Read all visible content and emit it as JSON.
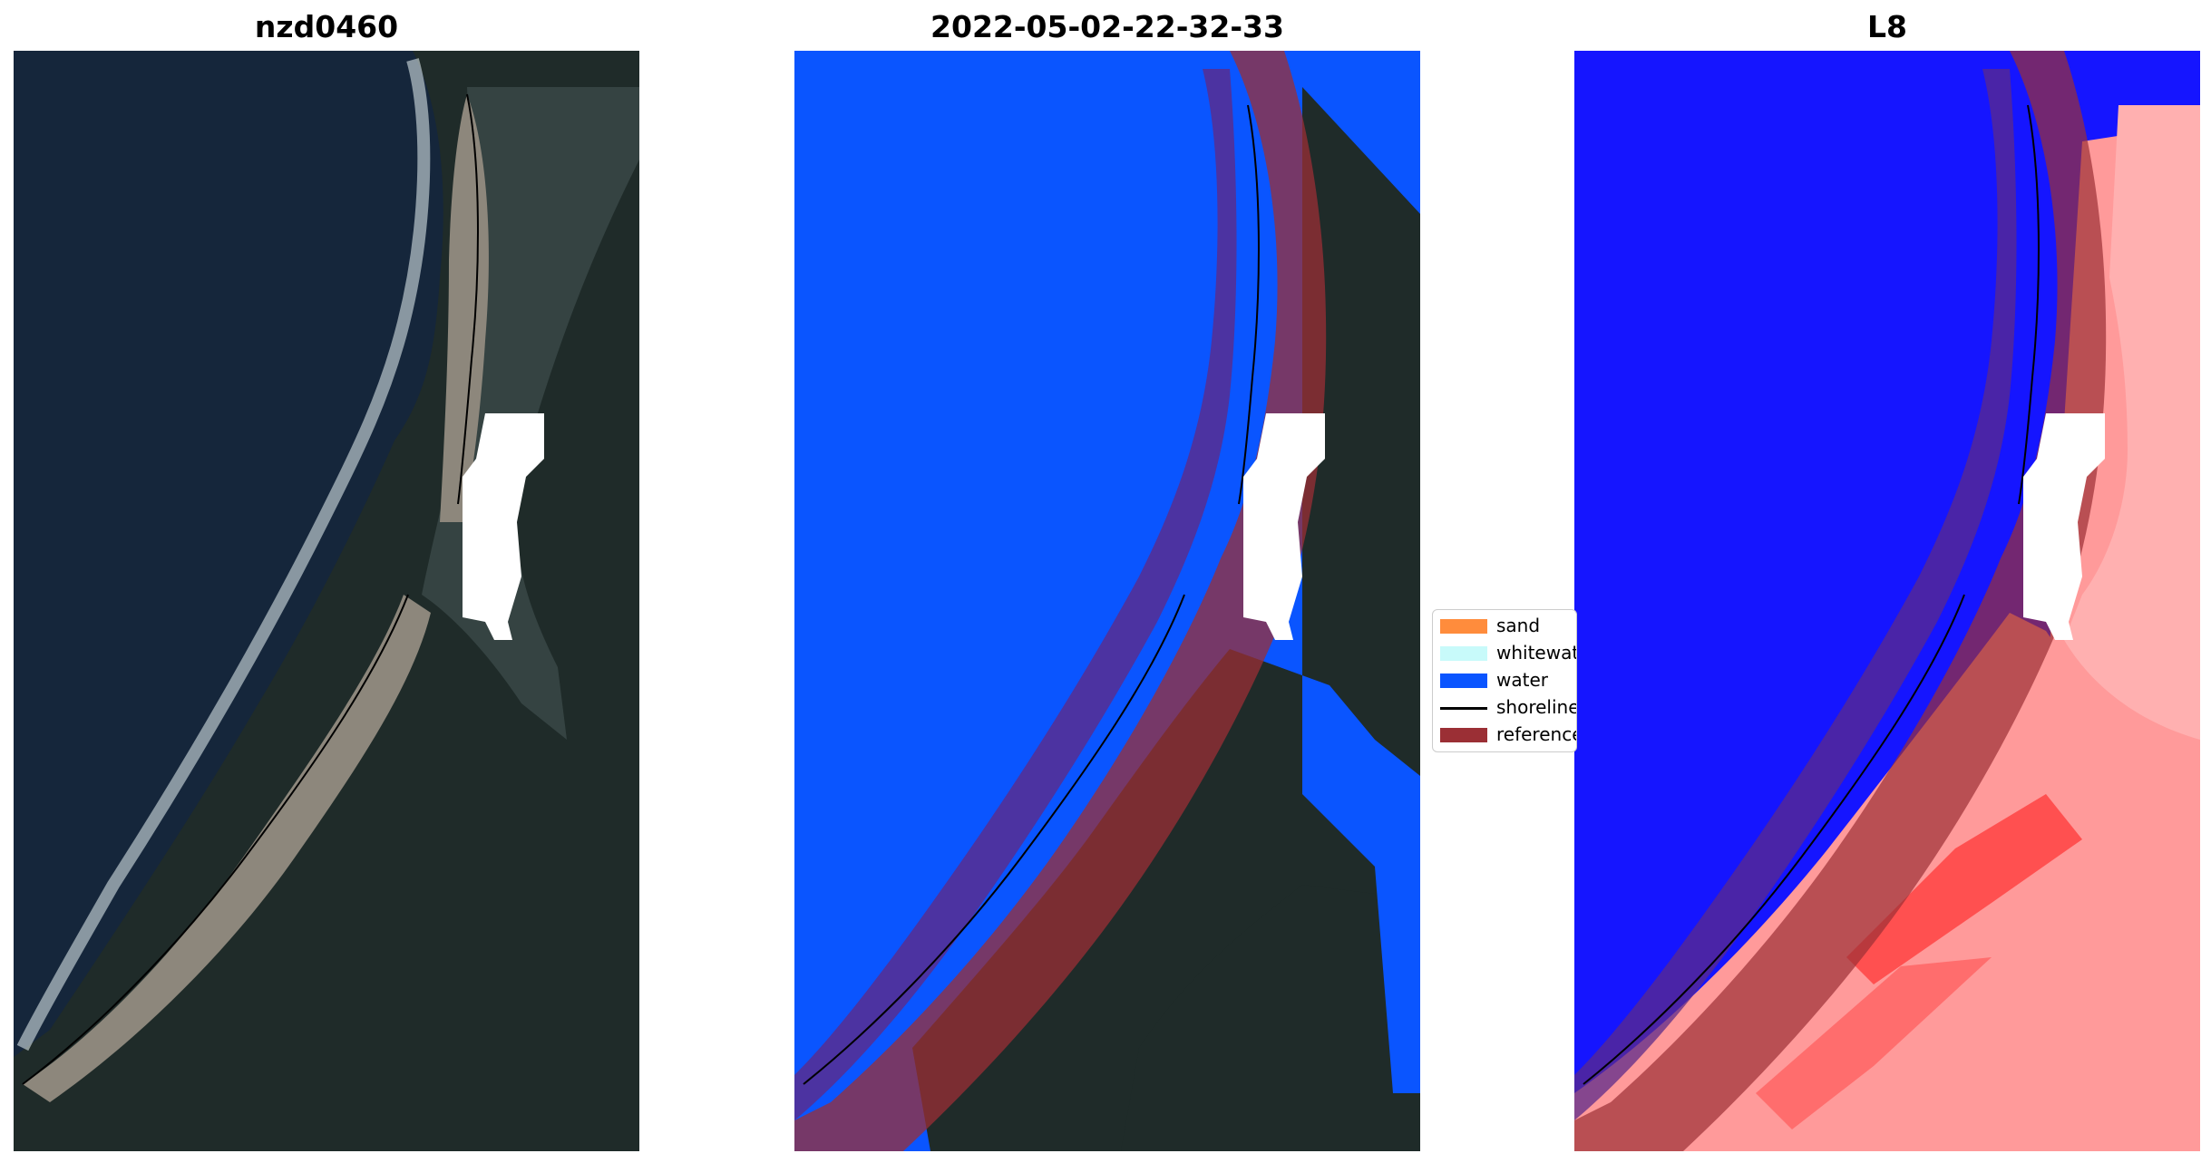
{
  "panels": [
    {
      "title": "nzd0460"
    },
    {
      "title": "2022-05-02-22-32-33"
    },
    {
      "title": "L8"
    }
  ],
  "legend": {
    "items": [
      {
        "label": "sand",
        "color": "#ff8c3c"
      },
      {
        "label": "whitewater",
        "color": "#c8fafa"
      },
      {
        "label": "water",
        "color": "#0a55ff"
      },
      {
        "label": "shoreline",
        "color": "#000000"
      },
      {
        "label": "reference",
        "color": "#9b2f35"
      }
    ]
  },
  "colors": {
    "ocean_rgb": "#15263b",
    "land_rgb": "#1f2b29",
    "sand_rgb": "#8d877c",
    "classified_water": "#0a55ff",
    "index_negative": "#1515ff",
    "index_positive": "#ff3030",
    "reference_buffer": "#9b2f35",
    "mask": "#ffffff"
  }
}
